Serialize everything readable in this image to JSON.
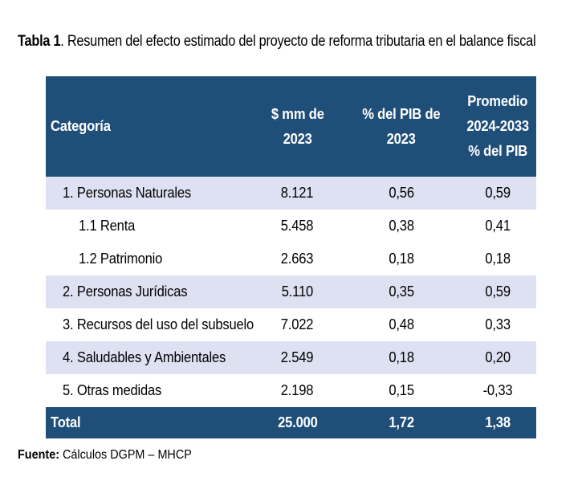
{
  "caption": {
    "label": "Tabla 1",
    "text": ". Resumen del efecto estimado del proyecto de reforma tributaria en el balance fiscal"
  },
  "table": {
    "header": {
      "categoria": "Categoría",
      "mm_line1": "$ mm de",
      "mm_line2": "2023",
      "pib_line1": "% del PIB de",
      "pib_line2": "2023",
      "prom_line1": "Promedio",
      "prom_line2": "2024-2033",
      "prom_line3": "% del PIB"
    },
    "rows": [
      {
        "categoria": "1. Personas Naturales",
        "mm": "8.121",
        "pib": "0,56",
        "promedio": "0,59"
      },
      {
        "categoria": "1.1 Renta",
        "mm": "5.458",
        "pib": "0,38",
        "promedio": "0,41"
      },
      {
        "categoria": "1.2 Patrimonio",
        "mm": "2.663",
        "pib": "0,18",
        "promedio": "0,18"
      },
      {
        "categoria": "2. Personas Jurídicas",
        "mm": "5.110",
        "pib": "0,35",
        "promedio": "0,59"
      },
      {
        "categoria": "3. Recursos del uso del subsuelo",
        "mm": "7.022",
        "pib": "0,48",
        "promedio": "0,33"
      },
      {
        "categoria": "4. Saludables y Ambientales",
        "mm": "2.549",
        "pib": "0,18",
        "promedio": "0,20"
      },
      {
        "categoria": "5. Otras medidas",
        "mm": "2.198",
        "pib": "0,15",
        "promedio": "-0,33"
      }
    ],
    "total": {
      "categoria": "Total",
      "mm": "25.000",
      "pib": "1,72",
      "promedio": "1,38"
    }
  },
  "source": {
    "label": "Fuente:",
    "text": " Cálculos DGPM – MHCP"
  },
  "colors": {
    "header_bg": "#1f4e79",
    "header_text": "#ffffff",
    "row_shade": "#dde1f2",
    "row_plain": "#ffffff"
  }
}
